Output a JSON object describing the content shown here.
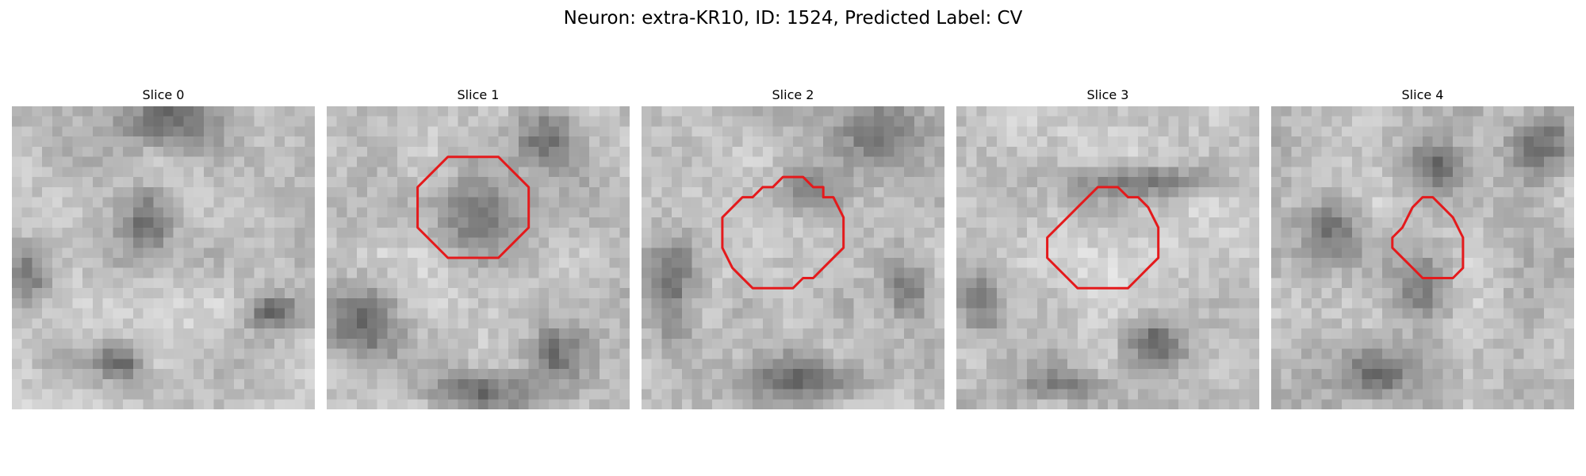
{
  "figure_title": "Neuron: extra-KR10, ID: 1524, Predicted Label: CV",
  "panels": [
    {
      "title": "Slice 0",
      "has_roi": false,
      "seed": 11,
      "dark_features": [
        [
          0.55,
          0.05,
          0.18,
          0.09
        ],
        [
          0.05,
          0.55,
          0.1,
          0.1
        ],
        [
          0.87,
          0.68,
          0.08,
          0.05
        ],
        [
          0.45,
          0.38,
          0.08,
          0.1
        ],
        [
          0.36,
          0.85,
          0.08,
          0.06
        ]
      ]
    },
    {
      "title": "Slice 1",
      "has_roi": true,
      "seed": 23,
      "dark_features": [
        [
          0.72,
          0.1,
          0.1,
          0.1
        ],
        [
          0.5,
          0.38,
          0.12,
          0.15
        ],
        [
          0.12,
          0.72,
          0.12,
          0.12
        ],
        [
          0.5,
          0.94,
          0.18,
          0.06
        ],
        [
          0.74,
          0.82,
          0.1,
          0.1
        ]
      ]
    },
    {
      "title": "Slice 2",
      "has_roi": true,
      "seed": 37,
      "dark_features": [
        [
          0.8,
          0.1,
          0.12,
          0.12
        ],
        [
          0.55,
          0.28,
          0.1,
          0.08
        ],
        [
          0.1,
          0.62,
          0.08,
          0.18
        ],
        [
          0.55,
          0.9,
          0.22,
          0.08
        ],
        [
          0.88,
          0.62,
          0.08,
          0.1
        ]
      ]
    },
    {
      "title": "Slice 3",
      "has_roi": true,
      "seed": 51,
      "dark_features": [
        [
          0.62,
          0.25,
          0.25,
          0.05
        ],
        [
          0.08,
          0.65,
          0.08,
          0.1
        ],
        [
          0.65,
          0.78,
          0.1,
          0.08
        ],
        [
          0.35,
          0.92,
          0.12,
          0.05
        ]
      ]
    },
    {
      "title": "Slice 4",
      "has_roi": true,
      "seed": 67,
      "dark_features": [
        [
          0.55,
          0.2,
          0.1,
          0.08
        ],
        [
          0.9,
          0.12,
          0.1,
          0.1
        ],
        [
          0.5,
          0.58,
          0.1,
          0.12
        ],
        [
          0.2,
          0.4,
          0.1,
          0.1
        ],
        [
          0.35,
          0.88,
          0.1,
          0.08
        ]
      ]
    }
  ],
  "roi_color": "#e41a1c",
  "roi_outlines": {
    "Slice 1": [
      [
        12,
        5
      ],
      [
        17,
        5
      ],
      [
        20,
        8
      ],
      [
        20,
        12
      ],
      [
        17,
        15
      ],
      [
        12,
        15
      ],
      [
        9,
        12
      ],
      [
        9,
        8
      ]
    ],
    "Slice 2": [
      [
        14,
        7
      ],
      [
        16,
        7
      ],
      [
        17,
        8
      ],
      [
        18,
        8
      ],
      [
        18,
        9
      ],
      [
        19,
        9
      ],
      [
        20,
        11
      ],
      [
        20,
        14
      ],
      [
        19,
        15
      ],
      [
        18,
        16
      ],
      [
        17,
        17
      ],
      [
        16,
        17
      ],
      [
        15,
        18
      ],
      [
        11,
        18
      ],
      [
        10,
        17
      ],
      [
        9,
        16
      ],
      [
        8,
        14
      ],
      [
        8,
        11
      ],
      [
        9,
        10
      ],
      [
        10,
        9
      ],
      [
        11,
        9
      ],
      [
        12,
        8
      ],
      [
        13,
        8
      ]
    ],
    "Slice 3": [
      [
        14,
        8
      ],
      [
        16,
        8
      ],
      [
        17,
        9
      ],
      [
        18,
        9
      ],
      [
        19,
        10
      ],
      [
        20,
        12
      ],
      [
        20,
        15
      ],
      [
        19,
        16
      ],
      [
        18,
        17
      ],
      [
        17,
        18
      ],
      [
        15,
        18
      ],
      [
        12,
        18
      ],
      [
        11,
        17
      ],
      [
        10,
        16
      ],
      [
        9,
        15
      ],
      [
        9,
        13
      ],
      [
        10,
        12
      ],
      [
        11,
        11
      ],
      [
        12,
        10
      ]
    ],
    "Slice 4": [
      [
        15,
        9
      ],
      [
        16,
        9
      ],
      [
        17,
        10
      ],
      [
        18,
        11
      ],
      [
        19,
        13
      ],
      [
        19,
        16
      ],
      [
        18,
        17
      ],
      [
        15,
        17
      ],
      [
        14,
        16
      ],
      [
        13,
        15
      ],
      [
        12,
        14
      ],
      [
        12,
        13
      ],
      [
        13,
        12
      ],
      [
        14,
        10
      ]
    ]
  },
  "colormap": "gray",
  "image_grid": [
    30,
    30
  ],
  "brightness": [
    0.35,
    0.92
  ]
}
